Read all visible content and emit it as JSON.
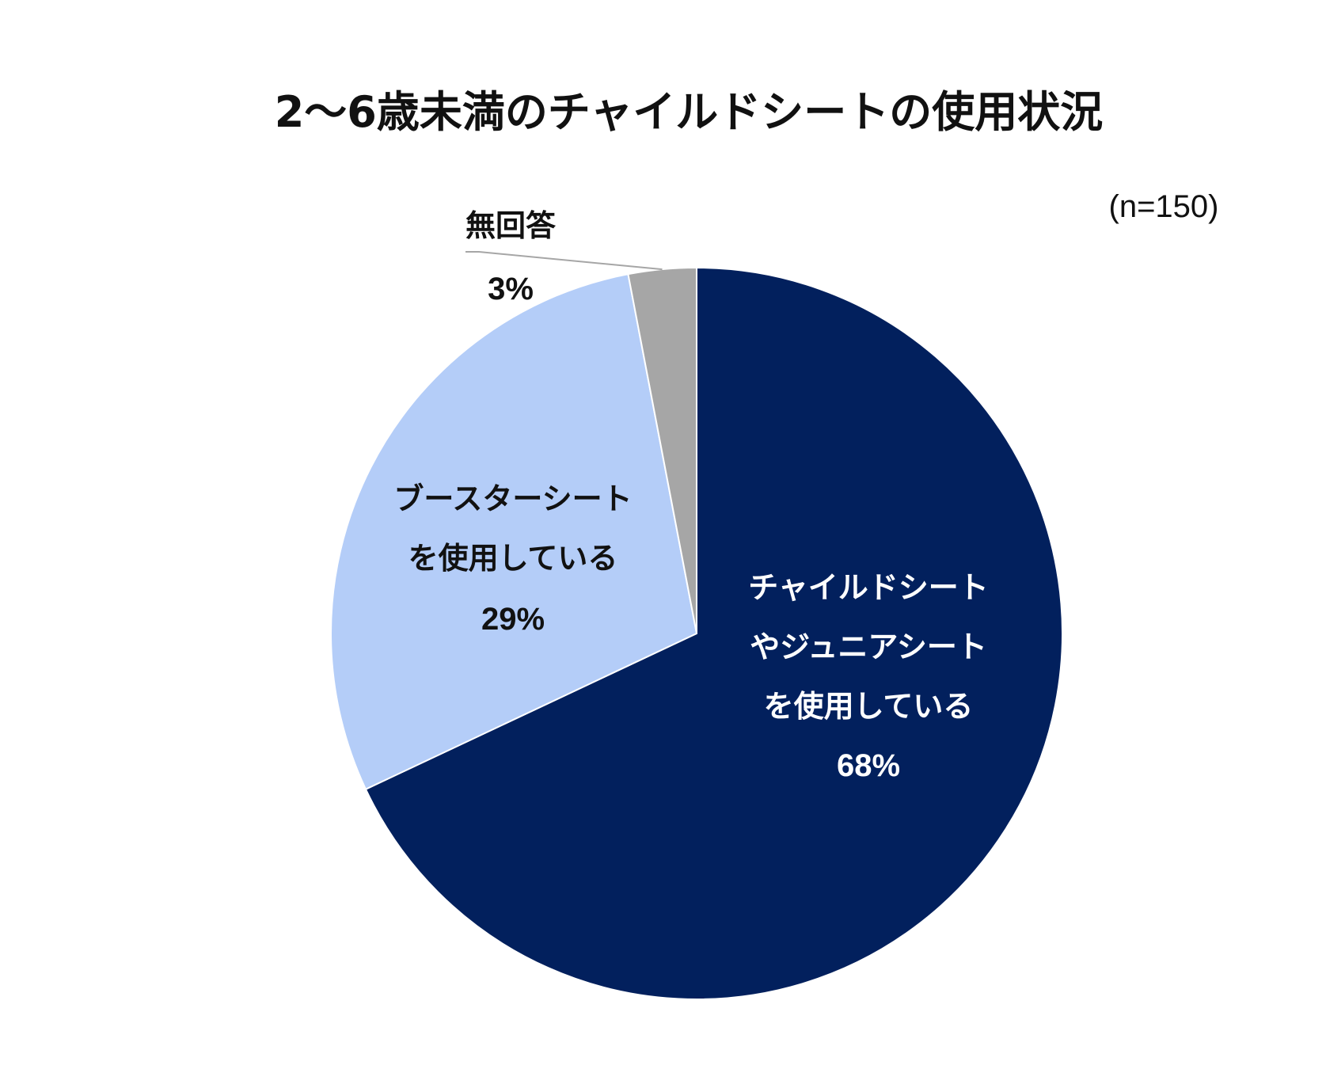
{
  "chart_data": {
    "type": "pie",
    "title": "2～6歳未満のチャイルドシートの使用状況",
    "note": "(n=150)",
    "start_angle_deg": 0,
    "direction": "clockwise",
    "slices": [
      {
        "label_lines": [
          "チャイルドシート",
          "やジュニアシート",
          "を使用している"
        ],
        "value": 68,
        "value_label": "68%",
        "color": "#02205d",
        "text_color": "#ffffff"
      },
      {
        "label_lines": [
          "ブースターシート",
          "を使用している"
        ],
        "value": 29,
        "value_label": "29%",
        "color": "#b4cdf8",
        "text_color": "#111111"
      },
      {
        "label_lines": [
          "無回答"
        ],
        "value": 3,
        "value_label": "3%",
        "color": "#a6a6a6",
        "text_color": "#111111"
      }
    ]
  }
}
